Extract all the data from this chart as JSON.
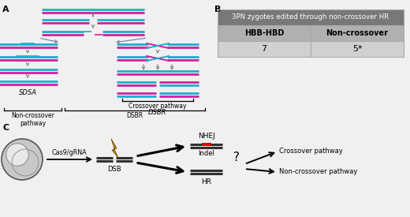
{
  "panel_A_label": "A",
  "panel_B_label": "B",
  "panel_C_label": "C",
  "table_header": "3PN zygotes edited through non-crossover HR",
  "table_col1_header": "HBB-HBD",
  "table_col2_header": "Non-crossover",
  "table_col1_value": "7",
  "table_col2_value": "5*",
  "sdsa_label": "SDSA",
  "dsbr_label": "DSBR",
  "non_crossover_label": "Non-crossover\npathway",
  "crossover_bracket_label": "Crossover pathway",
  "cas9_label": "Cas9/gRNA",
  "dsb_label": "DSB",
  "nhej_label": "NHEJ",
  "indel_label": "Indel",
  "hr_label": "HR",
  "crossover_pathway_label": "Crossover pathway",
  "non_crossover_pathway_label": "Non-crossover pathway",
  "question_mark": "?",
  "bg_color": "#f0f0f0",
  "dna_cyan": "#1ab0d0",
  "dna_magenta": "#d020a0",
  "dna_red_dark": "#c00000",
  "dna_blue_dark": "#0000c0",
  "dna_dark": "#303030",
  "lightning_color": "#c89000",
  "nhej_red": "#e00000",
  "table_header_color": "#787878",
  "table_subheader_color": "#b0b0b0",
  "table_data_color": "#d0d0d0"
}
